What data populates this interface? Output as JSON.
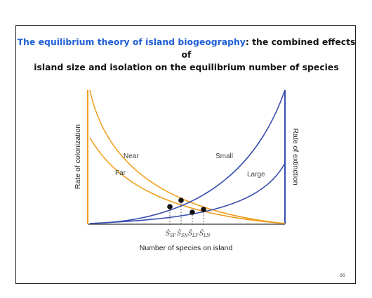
{
  "title": {
    "highlight": "The equilibrium theory of island biogeography",
    "rest": ": the combined effects of",
    "line2": "island size and isolation on the equilibrium number of species"
  },
  "axes": {
    "x_label": "Number of species on island",
    "y_left_label": "Rate of colonization",
    "y_right_label": "Rate of extinction"
  },
  "curve_labels": {
    "near": "Near",
    "far": "Far",
    "small": "Small",
    "large": "Large"
  },
  "equilibrium_labels": [
    "Ŝ",
    "Ŝ",
    "Ŝ",
    "Ŝ"
  ],
  "equilibrium_subscripts": [
    "SF",
    "SN",
    "LF",
    "LN"
  ],
  "page_number": "66",
  "colors": {
    "colonization": "#f0a020",
    "extinction": "#3b4fb0",
    "title_highlight": "#1f5fd6"
  }
}
